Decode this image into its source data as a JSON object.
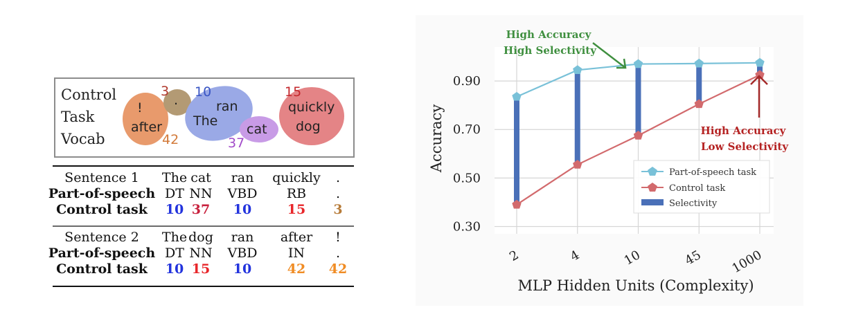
{
  "vocab_box": {
    "label_lines": [
      "Control",
      "Task",
      "Vocab"
    ],
    "clusters": [
      {
        "id": "42",
        "words": [
          "!",
          "after"
        ],
        "color": "#e89a6c",
        "id_color": "#d27a3a"
      },
      {
        "id": "3",
        "words": [
          "."
        ],
        "color": "#b39a74",
        "id_color": "#b03a2e"
      },
      {
        "id": "10",
        "words": [
          "ran",
          "The"
        ],
        "color": "#9aa9e6",
        "id_color": "#3955c4"
      },
      {
        "id": "37",
        "words": [
          "cat"
        ],
        "color": "#c89be6",
        "id_color": "#a24bc9"
      },
      {
        "id": "15",
        "words": [
          "quickly",
          "dog"
        ],
        "color": "#e48486",
        "id_color": "#c4272c"
      }
    ]
  },
  "sentence_table": {
    "blocks": [
      {
        "header": "Sentence 1",
        "words": [
          "The",
          "cat",
          "ran",
          "quickly",
          "."
        ],
        "pos_label": "Part-of-speech",
        "pos": [
          "DT",
          "NN",
          "VBD",
          "RB",
          "."
        ],
        "ctrl_label": "Control task",
        "ctrl": [
          "10",
          "37",
          "10",
          "15",
          "3"
        ],
        "ctrl_colors": [
          "#2233dd",
          "#c8223e",
          "#2233dd",
          "#e8262a",
          "#b77c3a"
        ]
      },
      {
        "header": "Sentence 2",
        "words": [
          "The",
          "dog",
          "ran",
          "after",
          "!"
        ],
        "pos_label": "Part-of-speech",
        "pos": [
          "DT",
          "NN",
          "VBD",
          "IN",
          "."
        ],
        "ctrl_label": "Control task",
        "ctrl": [
          "10",
          "15",
          "10",
          "42",
          "42"
        ],
        "ctrl_colors": [
          "#2233dd",
          "#e8262a",
          "#2233dd",
          "#f08c24",
          "#f08c24"
        ]
      }
    ]
  },
  "chart_data": {
    "type": "line",
    "categories": [
      "2",
      "4",
      "10",
      "45",
      "1000"
    ],
    "series": [
      {
        "name": "Part-of-speech task",
        "values": [
          0.835,
          0.945,
          0.97,
          0.972,
          0.975
        ],
        "color": "#79c1d8"
      },
      {
        "name": "Control task",
        "values": [
          0.39,
          0.555,
          0.675,
          0.805,
          0.925
        ],
        "color": "#d26a6d"
      }
    ],
    "selectivity": {
      "name": "Selectivity",
      "color": "#4a70b8"
    },
    "xlabel": "MLP Hidden Units (Complexity)",
    "ylabel": "Accuracy",
    "yticks": [
      0.3,
      0.5,
      0.7,
      0.9
    ],
    "ytick_labels": [
      "0.30",
      "0.50",
      "0.70",
      "0.90"
    ],
    "ylim": [
      0.27,
      1.04
    ],
    "grid": true,
    "legend_position": "bottom-right",
    "annotations": [
      {
        "lines": [
          "High Accuracy",
          "High Selectivity"
        ],
        "color": "#3f8f3f"
      },
      {
        "lines": [
          "High Accuracy",
          "Low Selectivity"
        ],
        "color": "#b52222"
      }
    ]
  }
}
